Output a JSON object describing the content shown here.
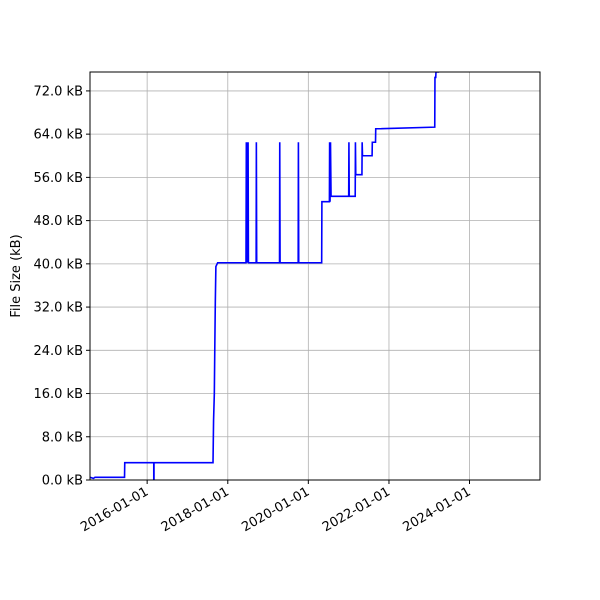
{
  "chart_data": {
    "type": "line",
    "title": "",
    "xlabel": "",
    "ylabel": "File Size (kB)",
    "x_axis_type": "date",
    "xlim": [
      "2014-08-01",
      "2025-10-01"
    ],
    "ylim": [
      0,
      75.5
    ],
    "grid": true,
    "legend": "none",
    "series_color": "#0000ff",
    "y_ticks": [
      {
        "value": 0,
        "label": "0.0 kB"
      },
      {
        "value": 8,
        "label": "8.0 kB"
      },
      {
        "value": 16,
        "label": "16.0 kB"
      },
      {
        "value": 24,
        "label": "24.0 kB"
      },
      {
        "value": 32,
        "label": "32.0 kB"
      },
      {
        "value": 40,
        "label": "40.0 kB"
      },
      {
        "value": 48,
        "label": "48.0 kB"
      },
      {
        "value": 56,
        "label": "56.0 kB"
      },
      {
        "value": 64,
        "label": "64.0 kB"
      },
      {
        "value": 72,
        "label": "72.0 kB"
      }
    ],
    "x_ticks": [
      {
        "value": "2016-01-01",
        "label": "2016-01-01"
      },
      {
        "value": "2018-01-01",
        "label": "2018-01-01"
      },
      {
        "value": "2020-01-01",
        "label": "2020-01-01"
      },
      {
        "value": "2022-01-01",
        "label": "2022-01-01"
      },
      {
        "value": "2024-01-01",
        "label": "2024-01-01"
      }
    ],
    "series": [
      {
        "x": [
          "2014-08-01",
          "2014-09-01",
          "2014-09-15",
          "2015-06-10",
          "2015-06-12",
          "2015-08-01",
          "2016-03-01",
          "2016-03-01",
          "2016-03-03",
          "2016-03-03",
          "2017-08-20",
          "2017-08-25",
          "2017-09-01",
          "2017-09-05",
          "2017-09-10",
          "2017-09-15",
          "2017-10-01",
          "2018-01-01",
          "2018-06-15",
          "2018-06-18",
          "2018-06-20",
          "2018-06-23",
          "2018-06-26",
          "2018-06-28",
          "2018-07-01",
          "2018-07-04",
          "2018-07-07",
          "2018-09-15",
          "2018-09-17",
          "2018-09-20",
          "2019-04-15",
          "2019-04-17",
          "2019-04-20",
          "2019-10-01",
          "2019-10-03",
          "2019-10-06",
          "2020-05-01",
          "2020-05-03",
          "2020-07-10",
          "2020-07-12",
          "2020-07-16",
          "2020-07-20",
          "2020-07-25",
          "2020-08-01",
          "2021-01-01",
          "2021-01-03",
          "2021-01-06",
          "2021-02-01",
          "2021-03-01",
          "2021-03-03",
          "2021-03-06",
          "2021-05-01",
          "2021-05-03",
          "2021-05-06",
          "2021-06-01",
          "2021-08-01",
          "2021-08-03",
          "2021-08-06",
          "2021-09-01",
          "2021-09-03",
          "2021-10-15",
          "2021-10-17",
          "2023-02-20",
          "2023-02-22",
          "2023-03-01",
          "2023-03-03",
          "2023-04-01"
        ],
        "y": [
          0.5,
          0.3,
          0.5,
          0.5,
          3.2,
          3.2,
          3.2,
          0,
          0,
          3.2,
          3.2,
          11,
          16,
          24,
          33,
          39.5,
          40.2,
          40.2,
          40.2,
          62.5,
          40.2,
          62.5,
          40.2,
          62.5,
          40.2,
          62.5,
          40.2,
          40.2,
          62.5,
          40.2,
          40.2,
          62.5,
          40.2,
          40.2,
          62.5,
          40.2,
          40.2,
          51.5,
          51.5,
          62.5,
          51.5,
          62.5,
          52.5,
          52.5,
          52.5,
          62.5,
          52.5,
          52.5,
          52.5,
          62.5,
          56.5,
          56.5,
          62.5,
          60,
          60,
          60,
          62.5,
          62.5,
          62.5,
          65,
          65,
          65,
          65.3,
          74.5,
          74.5,
          75.5,
          75.5
        ]
      }
    ]
  }
}
